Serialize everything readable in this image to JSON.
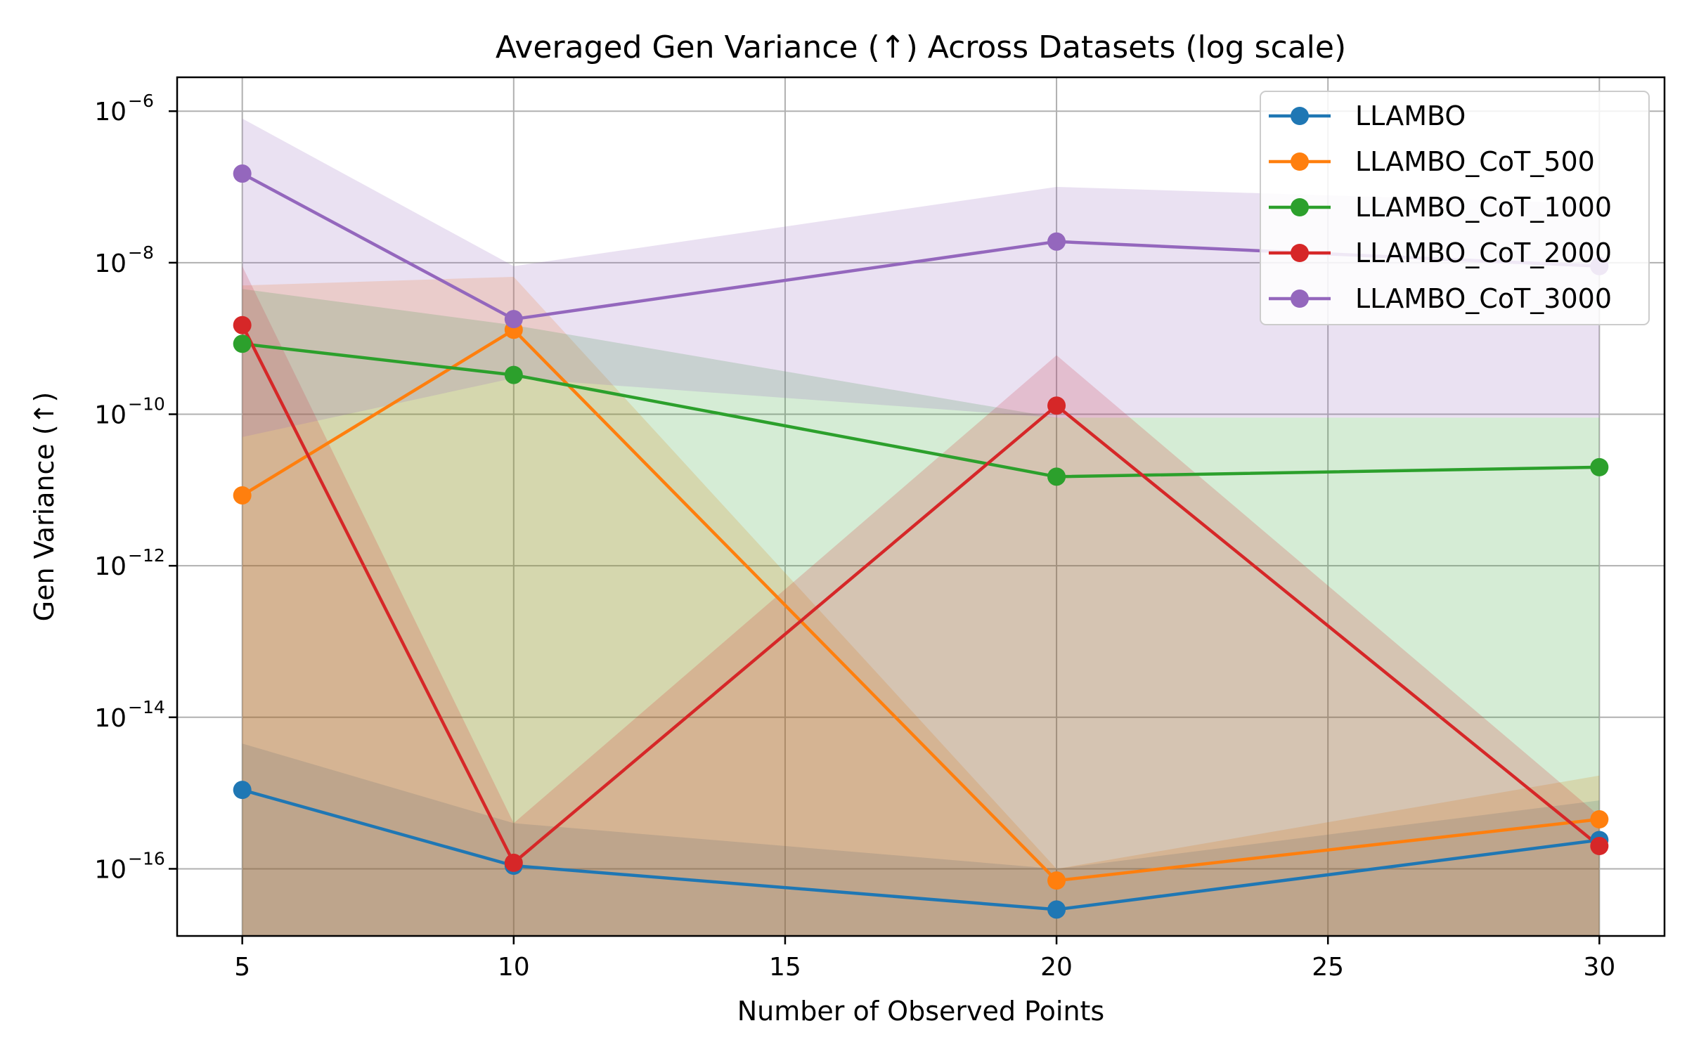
{
  "chart_data": {
    "type": "line",
    "title": "Averaged Gen Variance (↑) Across Datasets (log scale)",
    "xlabel": "Number of Observed Points",
    "ylabel": "Gen Variance (↑)",
    "y_scale": "log",
    "x": [
      5,
      10,
      20,
      30
    ],
    "xlim": [
      3.8,
      31.2
    ],
    "ylim": [
      1.3e-17,
      2.8e-06
    ],
    "xticks": [
      "5",
      "10",
      "15",
      "20",
      "25",
      "30"
    ],
    "xtick_values": [
      5,
      10,
      15,
      20,
      25,
      30
    ],
    "ytick_base": "10",
    "ytick_exponents": [
      "−6",
      "−8",
      "−10",
      "−12",
      "−14",
      "−16"
    ],
    "ytick_values": [
      1e-06,
      1e-08,
      1e-10,
      1e-12,
      1e-14,
      1e-16
    ],
    "grid": true,
    "legend_position": "top-right",
    "series": [
      {
        "name": "LLAMBO",
        "color": "#1f77b4",
        "values": [
          1.1e-15,
          1.1e-16,
          2.9e-17,
          2.4e-16
        ],
        "band_upper": [
          4.5e-15,
          4e-16,
          1e-16,
          8e-16
        ],
        "band_lower": [
          1e-17,
          1e-17,
          1e-17,
          1e-17
        ]
      },
      {
        "name": "LLAMBO_CoT_500",
        "color": "#ff7f0e",
        "values": [
          8.5e-12,
          1.3e-09,
          7e-17,
          4.5e-16
        ],
        "band_upper": [
          5e-09,
          6.5e-09,
          1e-16,
          1.7e-15
        ],
        "band_lower": [
          1e-17,
          1e-17,
          1e-17,
          1e-17
        ]
      },
      {
        "name": "LLAMBO_CoT_1000",
        "color": "#2ca02c",
        "values": [
          8.5e-10,
          3.3e-10,
          1.5e-11,
          2e-11
        ],
        "band_upper": [
          4.5e-09,
          1.5e-09,
          9e-11,
          9e-11
        ],
        "band_lower": [
          1e-17,
          1e-17,
          1e-17,
          1e-17
        ]
      },
      {
        "name": "LLAMBO_CoT_2000",
        "color": "#d62728",
        "values": [
          1.5e-09,
          1.2e-16,
          1.3e-10,
          2e-16
        ],
        "band_upper": [
          9e-09,
          4e-16,
          6e-10,
          5e-16
        ],
        "band_lower": [
          1e-17,
          1e-17,
          1e-17,
          1e-17
        ]
      },
      {
        "name": "LLAMBO_CoT_3000",
        "color": "#9467bd",
        "values": [
          1.5e-07,
          1.8e-09,
          1.9e-08,
          9e-09
        ],
        "band_upper": [
          8e-07,
          9e-09,
          1e-07,
          6e-08
        ],
        "band_lower": [
          5e-11,
          3e-10,
          9e-11,
          9e-11
        ]
      }
    ]
  }
}
